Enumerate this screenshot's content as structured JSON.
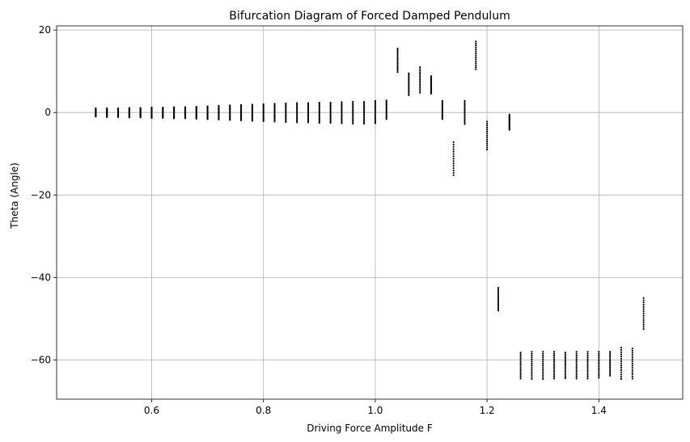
{
  "chart_data": {
    "type": "scatter",
    "title": "Bifurcation Diagram of Forced Damped Pendulum",
    "xlabel": "Driving Force Amplitude F",
    "ylabel": "Theta (Angle)",
    "xlim": [
      0.43,
      1.55
    ],
    "ylim": [
      -69.5,
      21.0
    ],
    "xticks": [
      0.6,
      0.8,
      1.0,
      1.2,
      1.4
    ],
    "xtick_labels": [
      "0.6",
      "0.8",
      "1.0",
      "1.2",
      "1.4"
    ],
    "yticks": [
      -60,
      -40,
      -20,
      0,
      20
    ],
    "ytick_labels": [
      "−60",
      "−40",
      "−20",
      "0",
      "20"
    ],
    "grid": true,
    "marker_color": "#000000",
    "columns": [
      {
        "x": 0.5,
        "min": -1.0,
        "max": 1.0
      },
      {
        "x": 0.52,
        "min": -1.1,
        "max": 1.0
      },
      {
        "x": 0.54,
        "min": -1.1,
        "max": 1.0
      },
      {
        "x": 0.56,
        "min": -1.2,
        "max": 1.1
      },
      {
        "x": 0.58,
        "min": -1.2,
        "max": 1.1
      },
      {
        "x": 0.6,
        "min": -1.3,
        "max": 1.2
      },
      {
        "x": 0.62,
        "min": -1.3,
        "max": 1.2
      },
      {
        "x": 0.64,
        "min": -1.4,
        "max": 1.3
      },
      {
        "x": 0.66,
        "min": -1.4,
        "max": 1.3
      },
      {
        "x": 0.68,
        "min": -1.5,
        "max": 1.4
      },
      {
        "x": 0.7,
        "min": -1.6,
        "max": 1.5
      },
      {
        "x": 0.72,
        "min": -1.7,
        "max": 1.6
      },
      {
        "x": 0.74,
        "min": -1.8,
        "max": 1.7
      },
      {
        "x": 0.76,
        "min": -1.9,
        "max": 1.8
      },
      {
        "x": 0.78,
        "min": -2.0,
        "max": 1.9
      },
      {
        "x": 0.8,
        "min": -2.1,
        "max": 2.0
      },
      {
        "x": 0.82,
        "min": -2.2,
        "max": 2.1
      },
      {
        "x": 0.84,
        "min": -2.3,
        "max": 2.2
      },
      {
        "x": 0.86,
        "min": -2.4,
        "max": 2.3
      },
      {
        "x": 0.88,
        "min": -2.4,
        "max": 2.3
      },
      {
        "x": 0.9,
        "min": -2.5,
        "max": 2.4
      },
      {
        "x": 0.92,
        "min": -2.5,
        "max": 2.4
      },
      {
        "x": 0.94,
        "min": -2.6,
        "max": 2.5
      },
      {
        "x": 0.96,
        "min": -2.7,
        "max": 2.6
      },
      {
        "x": 0.98,
        "min": -2.7,
        "max": 2.6
      },
      {
        "x": 1.0,
        "min": -2.6,
        "max": 2.8
      },
      {
        "x": 1.02,
        "min": -1.6,
        "max": 2.9
      },
      {
        "x": 1.04,
        "min": 9.8,
        "max": 15.5
      },
      {
        "x": 1.06,
        "min": 4.2,
        "max": 9.5
      },
      {
        "x": 1.08,
        "min": 4.8,
        "max": 11.0
      },
      {
        "x": 1.1,
        "min": 4.6,
        "max": 8.8
      },
      {
        "x": 1.12,
        "min": -1.6,
        "max": 2.8
      },
      {
        "x": 1.14,
        "min": -15.2,
        "max": -7.2
      },
      {
        "x": 1.16,
        "min": -2.8,
        "max": 2.8
      },
      {
        "x": 1.18,
        "min": 10.5,
        "max": 17.2
      },
      {
        "x": 1.2,
        "min": -9.0,
        "max": -2.2
      },
      {
        "x": 1.22,
        "min": -48.0,
        "max": -42.5
      },
      {
        "x": 1.24,
        "min": -4.2,
        "max": -0.5
      },
      {
        "x": 1.26,
        "min": -64.5,
        "max": -58.2
      },
      {
        "x": 1.28,
        "min": -64.6,
        "max": -58.0
      },
      {
        "x": 1.3,
        "min": -64.6,
        "max": -58.0
      },
      {
        "x": 1.32,
        "min": -64.5,
        "max": -58.0
      },
      {
        "x": 1.34,
        "min": -64.4,
        "max": -58.2
      },
      {
        "x": 1.36,
        "min": -64.5,
        "max": -58.0
      },
      {
        "x": 1.38,
        "min": -64.5,
        "max": -58.0
      },
      {
        "x": 1.4,
        "min": -64.3,
        "max": -58.0
      },
      {
        "x": 1.42,
        "min": -63.8,
        "max": -58.0
      },
      {
        "x": 1.44,
        "min": -64.6,
        "max": -57.0
      },
      {
        "x": 1.46,
        "min": -64.5,
        "max": -57.2
      },
      {
        "x": 1.48,
        "min": -52.5,
        "max": -45.0
      }
    ]
  }
}
